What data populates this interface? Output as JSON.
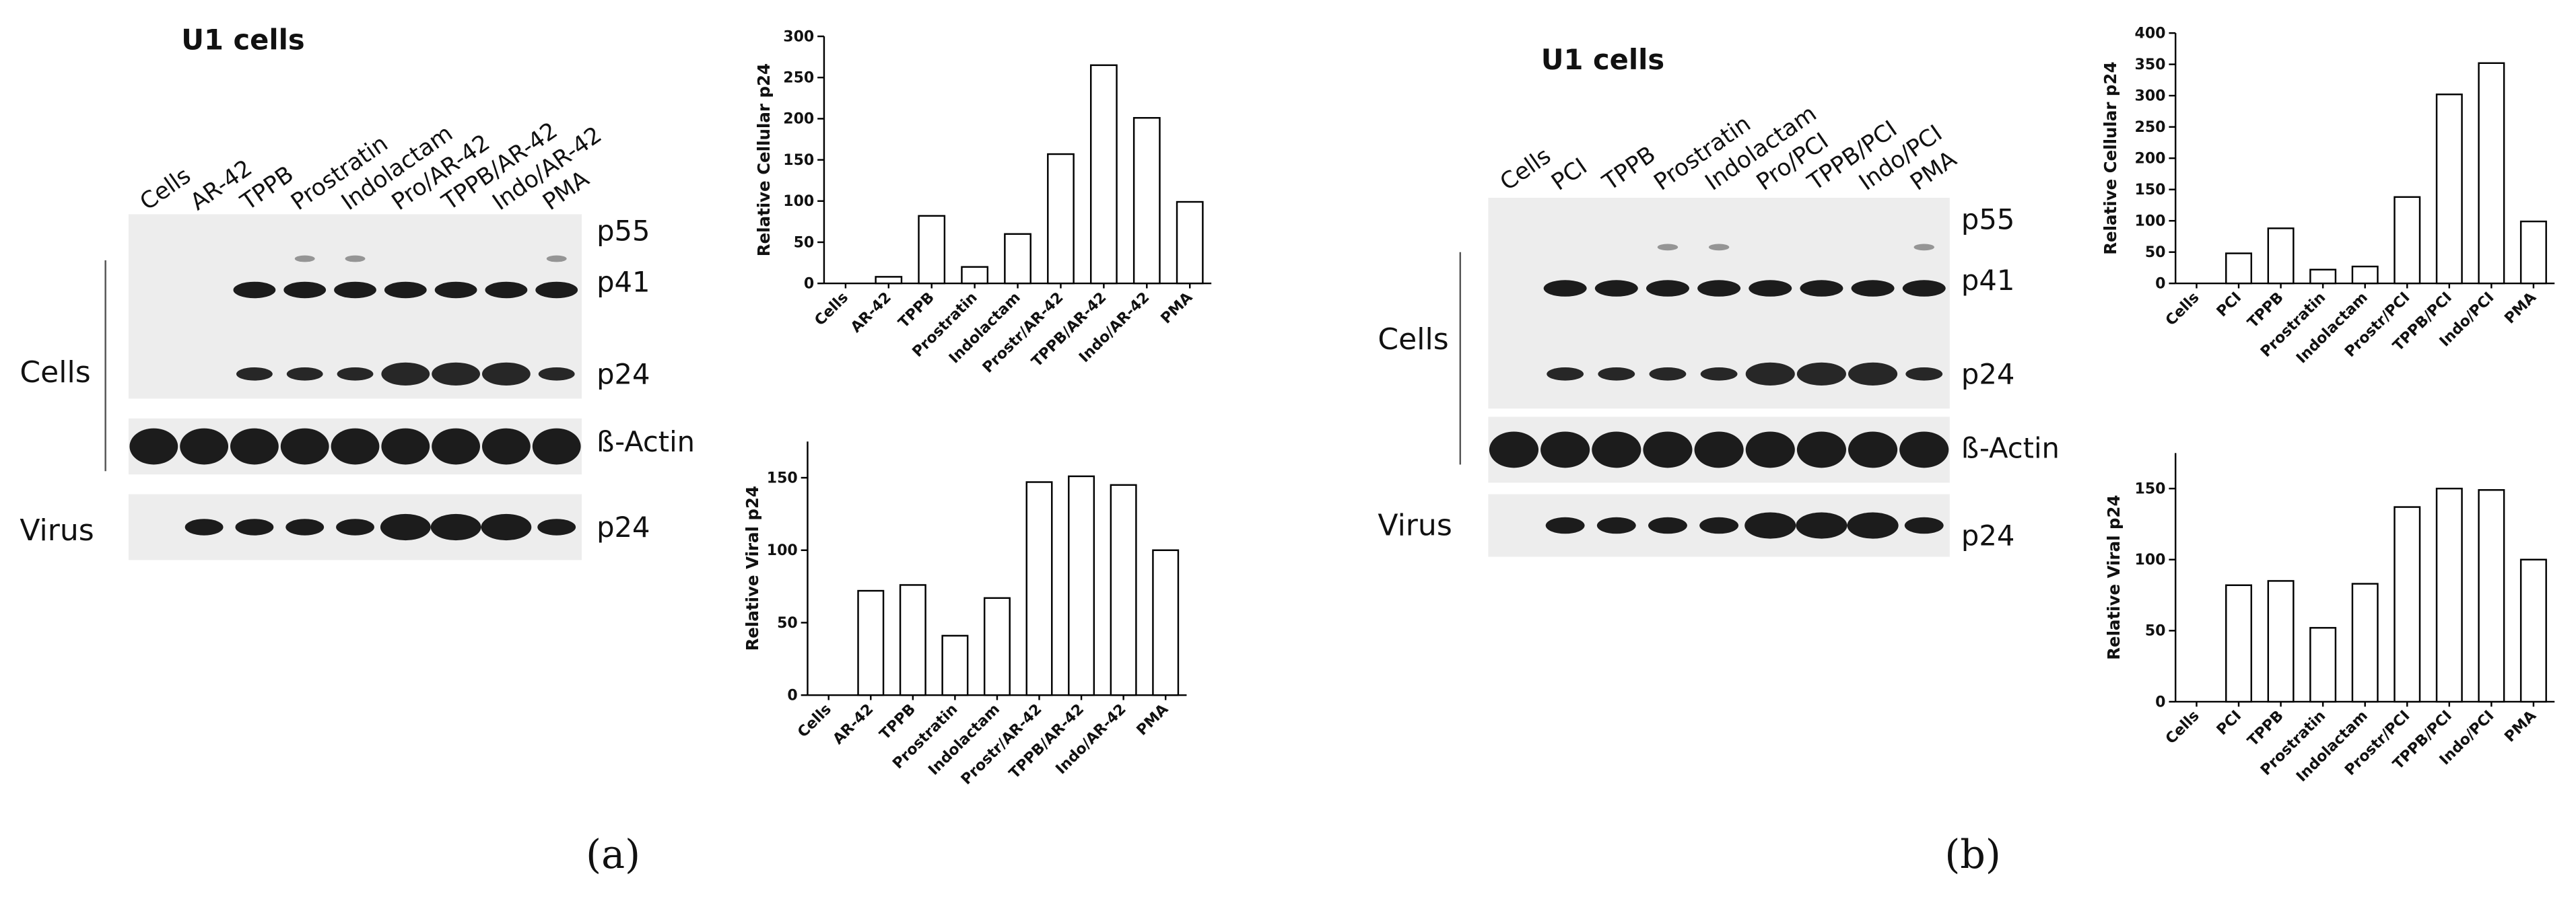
{
  "chart_data": [
    {
      "type": "bar",
      "ylabel": "Relative Cellular p24",
      "categories": [
        "Cells",
        "AR-42",
        "TPPB",
        "Prostratin",
        "Indolactam",
        "Prostr/AR-42",
        "TPPB/AR-42",
        "Indo/AR-42",
        "PMA"
      ],
      "values": [
        0,
        8,
        82,
        20,
        60,
        157,
        265,
        201,
        99
      ],
      "color": "#ffffff",
      "edgecolor": "#000000",
      "ylim": [
        0,
        300
      ],
      "yticks": [
        0,
        50,
        100,
        150,
        200,
        250,
        300
      ]
    },
    {
      "type": "bar",
      "ylabel": "Relative Viral p24",
      "categories": [
        "Cells",
        "AR-42",
        "TPPB",
        "Prostratin",
        "Indolactam",
        "Prostr/AR-42",
        "TPPB/AR-42",
        "Indo/AR-42",
        "PMA"
      ],
      "values": [
        0,
        72,
        76,
        41,
        67,
        147,
        151,
        145,
        100
      ],
      "color": "#ffffff",
      "edgecolor": "#000000",
      "ylim": [
        0,
        175
      ],
      "yticks": [
        0,
        50,
        100,
        150
      ]
    },
    {
      "type": "bar",
      "ylabel": "Relative Cellular p24",
      "categories": [
        "Cells",
        "PCI",
        "TPPB",
        "Prostratin",
        "Indolactam",
        "Prostr/PCI",
        "TPPB/PCI",
        "Indo/PCI",
        "PMA"
      ],
      "values": [
        0,
        48,
        88,
        22,
        27,
        138,
        302,
        352,
        99
      ],
      "color": "#ffffff",
      "edgecolor": "#000000",
      "ylim": [
        0,
        400
      ],
      "yticks": [
        0,
        50,
        100,
        150,
        200,
        250,
        300,
        350,
        400
      ]
    },
    {
      "type": "bar",
      "ylabel": "Relative Viral p24",
      "categories": [
        "Cells",
        "PCI",
        "TPPB",
        "Prostratin",
        "Indolactam",
        "Prostr/PCI",
        "TPPB/PCI",
        "Indo/PCI",
        "PMA"
      ],
      "values": [
        0,
        82,
        85,
        52,
        83,
        137,
        150,
        149,
        100
      ],
      "color": "#ffffff",
      "edgecolor": "#000000",
      "ylim": [
        0,
        175
      ],
      "yticks": [
        0,
        50,
        100,
        150
      ]
    }
  ],
  "blots": [
    {
      "title": "U1 cells",
      "lanes": [
        "Cells",
        "AR-42",
        "TPPB",
        "Prostratin",
        "Indolactam",
        "Pro/AR-42",
        "TPPB/AR-42",
        "Indo/AR-42",
        "PMA"
      ],
      "band_labels": [
        "p55",
        "p41",
        "p24",
        "ß-Actin",
        "p24"
      ],
      "groups": [
        "Cells",
        "Virus"
      ],
      "caption": "(a)"
    },
    {
      "title": "U1 cells",
      "lanes": [
        "Cells",
        "PCI",
        "TPPB",
        "Prostratin",
        "Indolactam",
        "Pro/PCI",
        "TPPB/PCI",
        "Indo/PCI",
        "PMA"
      ],
      "band_labels": [
        "p55",
        "p41",
        "p24",
        "ß-Actin",
        "p24"
      ],
      "groups": [
        "Cells",
        "Virus"
      ],
      "caption": "(b)"
    }
  ]
}
